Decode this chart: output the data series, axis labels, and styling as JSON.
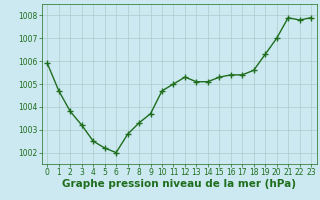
{
  "x": [
    0,
    1,
    2,
    3,
    4,
    5,
    6,
    7,
    8,
    9,
    10,
    11,
    12,
    13,
    14,
    15,
    16,
    17,
    18,
    19,
    20,
    21,
    22,
    23
  ],
  "y": [
    1005.9,
    1004.7,
    1003.8,
    1003.2,
    1002.5,
    1002.2,
    1002.0,
    1002.8,
    1003.3,
    1003.7,
    1004.7,
    1005.0,
    1005.3,
    1005.1,
    1005.1,
    1005.3,
    1005.4,
    1005.4,
    1005.6,
    1006.3,
    1007.0,
    1007.9,
    1007.8,
    1007.9
  ],
  "ylim": [
    1001.5,
    1008.5
  ],
  "yticks": [
    1002,
    1003,
    1004,
    1005,
    1006,
    1007,
    1008
  ],
  "xticks": [
    0,
    1,
    2,
    3,
    4,
    5,
    6,
    7,
    8,
    9,
    10,
    11,
    12,
    13,
    14,
    15,
    16,
    17,
    18,
    19,
    20,
    21,
    22,
    23
  ],
  "xlabel": "Graphe pression niveau de la mer (hPa)",
  "line_color": "#1e6e1e",
  "marker": "+",
  "marker_size": 4,
  "line_width": 1.0,
  "bg_color": "#cce8f0",
  "grid_color": "#aacccc",
  "tick_fontsize": 5.5,
  "xlabel_fontsize": 7.5,
  "xlabel_fontweight": "bold"
}
